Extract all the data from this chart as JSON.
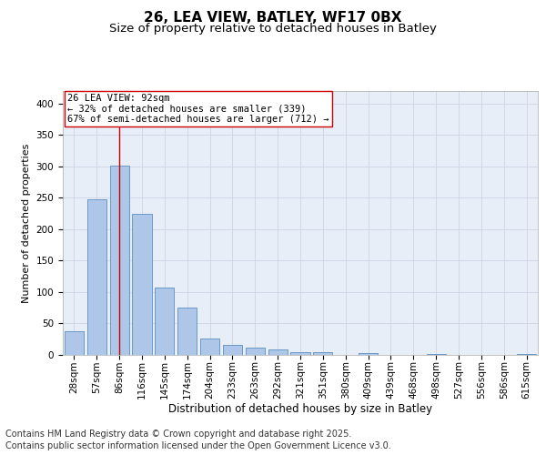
{
  "title": "26, LEA VIEW, BATLEY, WF17 0BX",
  "subtitle": "Size of property relative to detached houses in Batley",
  "xlabel": "Distribution of detached houses by size in Batley",
  "ylabel": "Number of detached properties",
  "categories": [
    "28sqm",
    "57sqm",
    "86sqm",
    "116sqm",
    "145sqm",
    "174sqm",
    "204sqm",
    "233sqm",
    "263sqm",
    "292sqm",
    "321sqm",
    "351sqm",
    "380sqm",
    "409sqm",
    "439sqm",
    "468sqm",
    "498sqm",
    "527sqm",
    "556sqm",
    "586sqm",
    "615sqm"
  ],
  "values": [
    38,
    248,
    301,
    224,
    107,
    75,
    26,
    16,
    11,
    9,
    5,
    4,
    0,
    3,
    0,
    0,
    2,
    0,
    0,
    0,
    1
  ],
  "bar_color": "#aec6e8",
  "bar_edge_color": "#5a8fc2",
  "vline_x_index": 2,
  "vline_color": "#cc0000",
  "annotation_text": "26 LEA VIEW: 92sqm\n← 32% of detached houses are smaller (339)\n67% of semi-detached houses are larger (712) →",
  "annotation_box_color": "#ffffff",
  "annotation_box_edge": "#cc0000",
  "annotation_fontsize": 7.5,
  "grid_color": "#d0d8e8",
  "background_color": "#e8eef8",
  "ylim": [
    0,
    420
  ],
  "yticks": [
    0,
    50,
    100,
    150,
    200,
    250,
    300,
    350,
    400
  ],
  "footer_line1": "Contains HM Land Registry data © Crown copyright and database right 2025.",
  "footer_line2": "Contains public sector information licensed under the Open Government Licence v3.0.",
  "title_fontsize": 11,
  "subtitle_fontsize": 9.5,
  "xlabel_fontsize": 8.5,
  "ylabel_fontsize": 8,
  "tick_fontsize": 7.5,
  "footer_fontsize": 7
}
